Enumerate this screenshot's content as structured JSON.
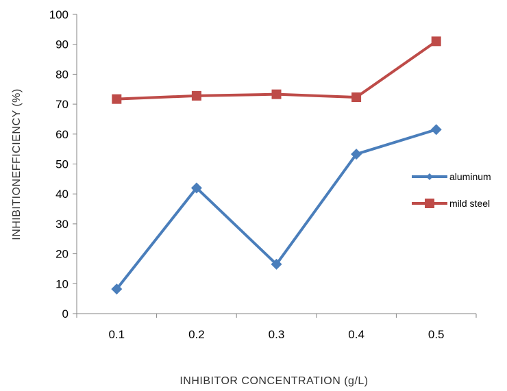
{
  "chart_data": {
    "type": "line",
    "title": "",
    "xlabel": "INHIBITOR CONCENTRATION (g/L)",
    "ylabel": "INHIBITIONEFFICIENCY (%)",
    "categories": [
      "0.1",
      "0.2",
      "0.3",
      "0.4",
      "0.5"
    ],
    "ylim": [
      0,
      100
    ],
    "yticks": [
      0,
      10,
      20,
      30,
      40,
      50,
      60,
      70,
      80,
      90,
      100
    ],
    "grid": false,
    "legend_position": "right",
    "series": [
      {
        "name": "aluminum",
        "values": [
          8.2,
          42.0,
          16.5,
          53.3,
          61.5
        ],
        "color": "#4a7ebb",
        "marker": "diamond"
      },
      {
        "name": "mild steel",
        "values": [
          71.7,
          72.8,
          73.3,
          72.3,
          91.0
        ],
        "color": "#be4b48",
        "marker": "square"
      }
    ]
  }
}
